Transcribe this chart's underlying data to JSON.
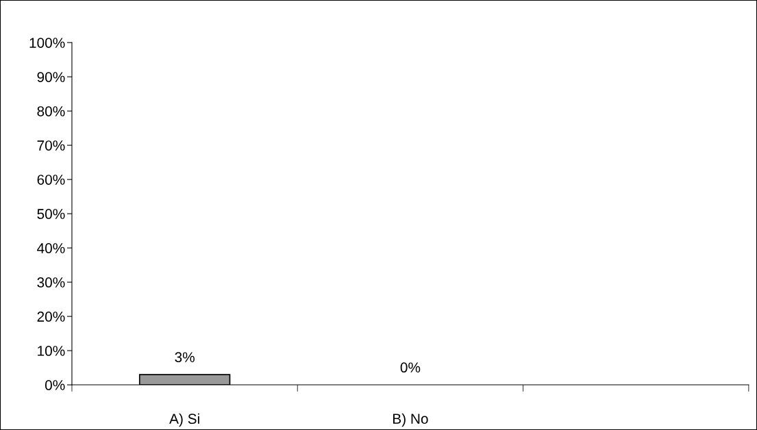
{
  "chart_data": {
    "type": "bar",
    "categories": [
      "A) Si",
      "B) No",
      null
    ],
    "values": [
      3,
      0,
      null
    ],
    "value_labels": [
      "3%",
      "0%",
      null
    ],
    "color": "#999999",
    "ylim": [
      0,
      100
    ],
    "yticks": [
      {
        "value": 0,
        "label": "0%"
      },
      {
        "value": 10,
        "label": "10%"
      },
      {
        "value": 20,
        "label": "20%"
      },
      {
        "value": 30,
        "label": "30%"
      },
      {
        "value": 40,
        "label": "40%"
      },
      {
        "value": 50,
        "label": "50%"
      },
      {
        "value": 60,
        "label": "60%"
      },
      {
        "value": 70,
        "label": "70%"
      },
      {
        "value": 80,
        "label": "80%"
      },
      {
        "value": 90,
        "label": "90%"
      },
      {
        "value": 100,
        "label": "100%"
      }
    ],
    "grid": false,
    "legend": false
  }
}
